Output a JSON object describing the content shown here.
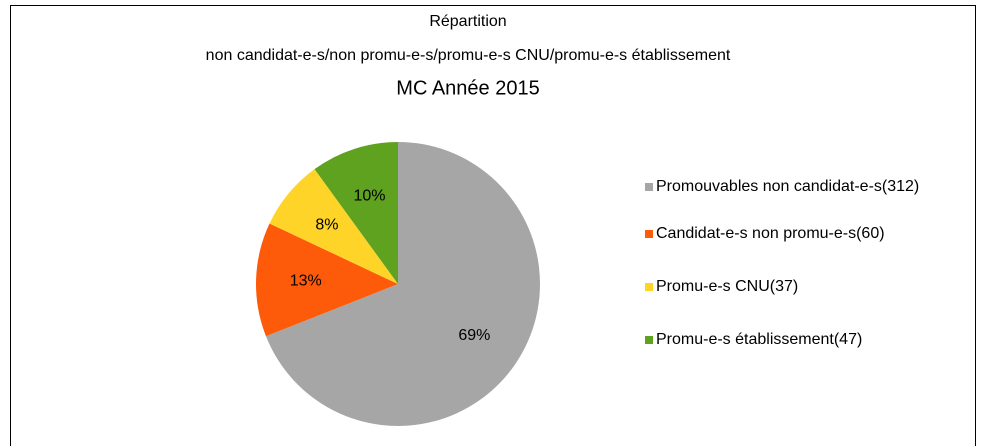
{
  "chart_data": {
    "type": "pie",
    "title": [
      "Répartition",
      "non candidat-e-s/non promu-e-s/promu-e-s CNU/promu-e-s établissement",
      "MC Année 2015"
    ],
    "categories": [
      "Promouvables non candidat-e-s(312)",
      "Candidat-e-s non promu-e-s(60)",
      "Promu-e-s CNU(37)",
      "Promu-e-s établissement(47)"
    ],
    "values": [
      69,
      13,
      8,
      10
    ],
    "value_labels": [
      "69%",
      "13%",
      "8%",
      "10%"
    ],
    "colors": [
      "#a6a6a6",
      "#fd5b0a",
      "#ffd428",
      "#5ea220"
    ],
    "legend": "right"
  }
}
